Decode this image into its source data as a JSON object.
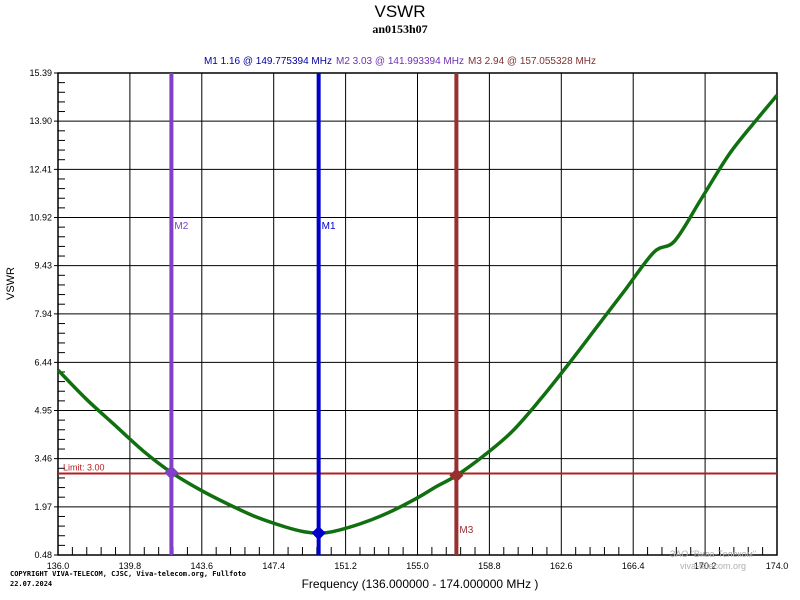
{
  "header": {
    "title": "VSWR",
    "subtitle": "an0153h07"
  },
  "markers": [
    {
      "id": "M1",
      "label": "M1",
      "summary": "M1  1.16 @ 149.775394 MHz",
      "vswr": 1.16,
      "freq_mhz": 149.775394,
      "color": "#0000c8"
    },
    {
      "id": "M2",
      "label": "M2",
      "summary": "M2  3.03 @ 141.993394 MHz",
      "vswr": 3.03,
      "freq_mhz": 141.993394,
      "color": "#8040c8"
    },
    {
      "id": "M3",
      "label": "M3",
      "summary": "M3  2.94 @ 157.055328 MHz",
      "vswr": 2.94,
      "freq_mhz": 157.055328,
      "color": "#983030"
    }
  ],
  "limit": {
    "label": "Limit: 3.00",
    "value": 3.0,
    "color": "#b02020"
  },
  "axes": {
    "ylabel": "VSWR",
    "xlabel": "Frequency (136.000000 - 174.000000 MHz )",
    "yticks": [
      "15.39",
      "13.90",
      "12.41",
      "10.92",
      "9.43",
      "7.94",
      "6.44",
      "4.95",
      "3.46",
      "1.97",
      "0.48"
    ],
    "xticks": [
      "136.0",
      "139.8",
      "143.6",
      "147.4",
      "151.2",
      "155.0",
      "158.8",
      "162.6",
      "166.4",
      "170.2",
      "174.0"
    ]
  },
  "footer": {
    "copyright_line1": "COPYRIGHT VIVA-TELECOM, CJSC, Viva-telecom.org, Fullfoto",
    "copyright_line2": "22.07.2024",
    "watermark_line1": "ЗАО \"Вива-Телеком\"",
    "watermark_line2": "viva-telecom.org"
  },
  "chart_data": {
    "type": "line",
    "title": "VSWR",
    "subtitle": "an0153h07",
    "xlabel": "Frequency (136.000000 - 174.000000 MHz )",
    "ylabel": "VSWR",
    "xlim": [
      136.0,
      174.0
    ],
    "ylim": [
      0.48,
      15.39
    ],
    "grid": true,
    "x_ticks": [
      136.0,
      139.8,
      143.6,
      147.4,
      151.2,
      155.0,
      158.8,
      162.6,
      166.4,
      170.2,
      174.0
    ],
    "y_ticks": [
      0.48,
      1.97,
      3.46,
      4.95,
      6.44,
      7.94,
      9.43,
      10.92,
      12.41,
      13.9,
      15.39
    ],
    "series": [
      {
        "name": "VSWR",
        "color": "#107010",
        "x": [
          136.0,
          137.5,
          139.0,
          140.5,
          142.0,
          143.5,
          145.0,
          146.5,
          148.0,
          149.0,
          149.78,
          150.5,
          152.0,
          153.5,
          155.0,
          156.0,
          157.06,
          158.5,
          160.0,
          161.5,
          163.0,
          164.5,
          166.0,
          167.5,
          168.6,
          170.0,
          171.5,
          173.0,
          174.0
        ],
        "values": [
          6.2,
          5.3,
          4.5,
          3.7,
          3.03,
          2.5,
          2.05,
          1.65,
          1.35,
          1.2,
          1.16,
          1.2,
          1.45,
          1.8,
          2.25,
          2.6,
          2.94,
          3.55,
          4.3,
          5.3,
          6.4,
          7.55,
          8.7,
          9.85,
          10.2,
          11.5,
          12.9,
          14.0,
          14.7
        ]
      }
    ],
    "markers": [
      {
        "name": "M1",
        "x": 149.775394,
        "y": 1.16
      },
      {
        "name": "M2",
        "x": 141.993394,
        "y": 3.03
      },
      {
        "name": "M3",
        "x": 157.055328,
        "y": 2.94
      }
    ],
    "hlines": [
      {
        "label": "Limit: 3.00",
        "y": 3.0
      }
    ],
    "legend_position": "top"
  }
}
